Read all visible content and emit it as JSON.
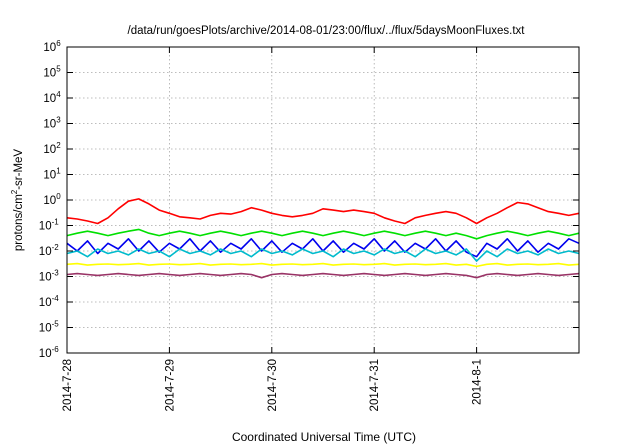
{
  "chart_data": {
    "type": "line",
    "title": "/data/run/goesPlots/archive/2014-08-01/23:00/flux/../flux/5daysMoonFluxes.txt",
    "xlabel": "Coordinated Universal Time (UTC)",
    "ylabel": "protons/cm2-sr-MeV",
    "ylabel_parts": {
      "before": "protons/cm",
      "sup": "2",
      "after": "-sr-MeV"
    },
    "yscale": "log",
    "xlim": [
      0,
      5
    ],
    "ylim_exponent": [
      -6,
      6
    ],
    "grid": true,
    "legend": "none",
    "x_ticks": [
      {
        "x": 0,
        "label": "2014-7-28"
      },
      {
        "x": 1,
        "label": "2014-7-29"
      },
      {
        "x": 2,
        "label": "2014-7-30"
      },
      {
        "x": 3,
        "label": "2014-7-31"
      },
      {
        "x": 4,
        "label": "2014-8-1"
      }
    ],
    "y_ticks": [
      {
        "exp": -6,
        "base": "10",
        "sup": "-6"
      },
      {
        "exp": -5,
        "base": "10",
        "sup": "-5"
      },
      {
        "exp": -4,
        "base": "10",
        "sup": "-4"
      },
      {
        "exp": -3,
        "base": "10",
        "sup": "-3"
      },
      {
        "exp": -2,
        "base": "10",
        "sup": "-2"
      },
      {
        "exp": -1,
        "base": "10",
        "sup": "-1"
      },
      {
        "exp": 0,
        "base": "10",
        "sup": "0"
      },
      {
        "exp": 1,
        "base": "10",
        "sup": "1"
      },
      {
        "exp": 2,
        "base": "10",
        "sup": "2"
      },
      {
        "exp": 3,
        "base": "10",
        "sup": "3"
      },
      {
        "exp": 4,
        "base": "10",
        "sup": "4"
      },
      {
        "exp": 5,
        "base": "10",
        "sup": "5"
      },
      {
        "exp": 6,
        "base": "10",
        "sup": "6"
      }
    ],
    "series": [
      {
        "color": "#ff0000",
        "x": [
          0,
          0.1,
          0.2,
          0.3,
          0.4,
          0.5,
          0.6,
          0.7,
          0.8,
          0.9,
          1,
          1.1,
          1.2,
          1.3,
          1.4,
          1.5,
          1.6,
          1.7,
          1.8,
          1.9,
          2,
          2.1,
          2.2,
          2.3,
          2.4,
          2.5,
          2.6,
          2.7,
          2.8,
          2.9,
          3,
          3.1,
          3.2,
          3.3,
          3.4,
          3.5,
          3.6,
          3.7,
          3.8,
          3.9,
          4,
          4.1,
          4.2,
          4.3,
          4.4,
          4.5,
          4.6,
          4.7,
          4.8,
          4.9,
          5
        ],
        "y": [
          0.2,
          0.18,
          0.15,
          0.12,
          0.2,
          0.45,
          0.9,
          1.1,
          0.7,
          0.4,
          0.3,
          0.22,
          0.2,
          0.18,
          0.25,
          0.3,
          0.28,
          0.35,
          0.5,
          0.4,
          0.3,
          0.25,
          0.22,
          0.25,
          0.3,
          0.45,
          0.4,
          0.35,
          0.4,
          0.35,
          0.3,
          0.2,
          0.15,
          0.12,
          0.2,
          0.25,
          0.3,
          0.35,
          0.3,
          0.2,
          0.12,
          0.2,
          0.3,
          0.5,
          0.8,
          0.7,
          0.5,
          0.35,
          0.3,
          0.25,
          0.3
        ]
      },
      {
        "color": "#00e000",
        "x": [
          0,
          0.1,
          0.2,
          0.3,
          0.4,
          0.5,
          0.6,
          0.7,
          0.8,
          0.9,
          1,
          1.1,
          1.2,
          1.3,
          1.4,
          1.5,
          1.6,
          1.7,
          1.8,
          1.9,
          2,
          2.1,
          2.2,
          2.3,
          2.4,
          2.5,
          2.6,
          2.7,
          2.8,
          2.9,
          3,
          3.1,
          3.2,
          3.3,
          3.4,
          3.5,
          3.6,
          3.7,
          3.8,
          3.9,
          4,
          4.1,
          4.2,
          4.3,
          4.4,
          4.5,
          4.6,
          4.7,
          4.8,
          4.9,
          5
        ],
        "y": [
          0.04,
          0.05,
          0.06,
          0.05,
          0.04,
          0.05,
          0.06,
          0.07,
          0.05,
          0.04,
          0.05,
          0.06,
          0.05,
          0.04,
          0.05,
          0.06,
          0.05,
          0.04,
          0.05,
          0.06,
          0.05,
          0.04,
          0.05,
          0.06,
          0.05,
          0.04,
          0.05,
          0.06,
          0.05,
          0.04,
          0.05,
          0.06,
          0.05,
          0.04,
          0.05,
          0.06,
          0.05,
          0.04,
          0.05,
          0.04,
          0.03,
          0.04,
          0.05,
          0.06,
          0.05,
          0.04,
          0.05,
          0.06,
          0.05,
          0.04,
          0.05
        ]
      },
      {
        "color": "#0000ee",
        "x": [
          0,
          0.1,
          0.2,
          0.3,
          0.4,
          0.5,
          0.6,
          0.7,
          0.8,
          0.9,
          1,
          1.1,
          1.2,
          1.3,
          1.4,
          1.5,
          1.6,
          1.7,
          1.8,
          1.9,
          2,
          2.1,
          2.2,
          2.3,
          2.4,
          2.5,
          2.6,
          2.7,
          2.8,
          2.9,
          3,
          3.1,
          3.2,
          3.3,
          3.4,
          3.5,
          3.6,
          3.7,
          3.8,
          3.9,
          4,
          4.1,
          4.2,
          4.3,
          4.4,
          4.5,
          4.6,
          4.7,
          4.8,
          4.9,
          5
        ],
        "y": [
          0.02,
          0.01,
          0.025,
          0.008,
          0.02,
          0.012,
          0.03,
          0.01,
          0.025,
          0.009,
          0.02,
          0.012,
          0.03,
          0.01,
          0.025,
          0.009,
          0.02,
          0.012,
          0.03,
          0.01,
          0.025,
          0.009,
          0.02,
          0.012,
          0.03,
          0.01,
          0.025,
          0.009,
          0.02,
          0.012,
          0.03,
          0.01,
          0.025,
          0.009,
          0.02,
          0.012,
          0.03,
          0.01,
          0.025,
          0.009,
          0.006,
          0.02,
          0.012,
          0.03,
          0.01,
          0.025,
          0.009,
          0.02,
          0.012,
          0.03,
          0.02
        ]
      },
      {
        "color": "#00bbcc",
        "x": [
          0,
          0.1,
          0.2,
          0.3,
          0.4,
          0.5,
          0.6,
          0.7,
          0.8,
          0.9,
          1,
          1.1,
          1.2,
          1.3,
          1.4,
          1.5,
          1.6,
          1.7,
          1.8,
          1.9,
          2,
          2.1,
          2.2,
          2.3,
          2.4,
          2.5,
          2.6,
          2.7,
          2.8,
          2.9,
          3,
          3.1,
          3.2,
          3.3,
          3.4,
          3.5,
          3.6,
          3.7,
          3.8,
          3.9,
          4,
          4.1,
          4.2,
          4.3,
          4.4,
          4.5,
          4.6,
          4.7,
          4.8,
          4.9,
          5
        ],
        "y": [
          0.008,
          0.01,
          0.006,
          0.012,
          0.008,
          0.01,
          0.007,
          0.012,
          0.008,
          0.01,
          0.006,
          0.012,
          0.008,
          0.01,
          0.007,
          0.012,
          0.008,
          0.01,
          0.006,
          0.012,
          0.008,
          0.01,
          0.007,
          0.012,
          0.008,
          0.01,
          0.006,
          0.012,
          0.008,
          0.01,
          0.007,
          0.012,
          0.008,
          0.01,
          0.006,
          0.012,
          0.008,
          0.01,
          0.007,
          0.012,
          0.004,
          0.01,
          0.006,
          0.012,
          0.008,
          0.01,
          0.007,
          0.012,
          0.008,
          0.01,
          0.008
        ]
      },
      {
        "color": "#ffff00",
        "x": [
          0,
          0.1,
          0.2,
          0.3,
          0.4,
          0.5,
          0.6,
          0.7,
          0.8,
          0.9,
          1,
          1.1,
          1.2,
          1.3,
          1.4,
          1.5,
          1.6,
          1.7,
          1.8,
          1.9,
          2,
          2.1,
          2.2,
          2.3,
          2.4,
          2.5,
          2.6,
          2.7,
          2.8,
          2.9,
          3,
          3.1,
          3.2,
          3.3,
          3.4,
          3.5,
          3.6,
          3.7,
          3.8,
          3.9,
          4,
          4.1,
          4.2,
          4.3,
          4.4,
          4.5,
          4.6,
          4.7,
          4.8,
          4.9,
          5
        ],
        "y": [
          0.003,
          0.0032,
          0.0028,
          0.003,
          0.0031,
          0.0029,
          0.003,
          0.0032,
          0.0028,
          0.003,
          0.0031,
          0.0029,
          0.003,
          0.0032,
          0.0028,
          0.003,
          0.0031,
          0.0029,
          0.003,
          0.0032,
          0.0028,
          0.003,
          0.0031,
          0.0029,
          0.003,
          0.0032,
          0.0028,
          0.003,
          0.0031,
          0.0029,
          0.003,
          0.0032,
          0.0028,
          0.003,
          0.0031,
          0.0029,
          0.003,
          0.0032,
          0.0028,
          0.003,
          0.0025,
          0.003,
          0.0032,
          0.0028,
          0.003,
          0.0031,
          0.0029,
          0.003,
          0.0032,
          0.0028,
          0.003
        ]
      },
      {
        "color": "#993366",
        "x": [
          0,
          0.1,
          0.2,
          0.3,
          0.4,
          0.5,
          0.6,
          0.7,
          0.8,
          0.9,
          1,
          1.1,
          1.2,
          1.3,
          1.4,
          1.5,
          1.6,
          1.7,
          1.8,
          1.9,
          2,
          2.1,
          2.2,
          2.3,
          2.4,
          2.5,
          2.6,
          2.7,
          2.8,
          2.9,
          3,
          3.1,
          3.2,
          3.3,
          3.4,
          3.5,
          3.6,
          3.7,
          3.8,
          3.9,
          4,
          4.1,
          4.2,
          4.3,
          4.4,
          4.5,
          4.6,
          4.7,
          4.8,
          4.9,
          5
        ],
        "y": [
          0.0012,
          0.0013,
          0.0012,
          0.0011,
          0.0012,
          0.0013,
          0.0012,
          0.0011,
          0.0012,
          0.0013,
          0.0012,
          0.0011,
          0.0012,
          0.0013,
          0.0012,
          0.0011,
          0.0012,
          0.0013,
          0.0012,
          0.0009,
          0.0012,
          0.0013,
          0.0012,
          0.0011,
          0.0012,
          0.0013,
          0.0012,
          0.0011,
          0.0012,
          0.0013,
          0.0012,
          0.0011,
          0.0012,
          0.0013,
          0.0012,
          0.0011,
          0.0012,
          0.0013,
          0.0012,
          0.0011,
          0.0009,
          0.0012,
          0.0013,
          0.0012,
          0.0011,
          0.0012,
          0.0013,
          0.0012,
          0.0011,
          0.0012,
          0.0013
        ]
      }
    ]
  }
}
